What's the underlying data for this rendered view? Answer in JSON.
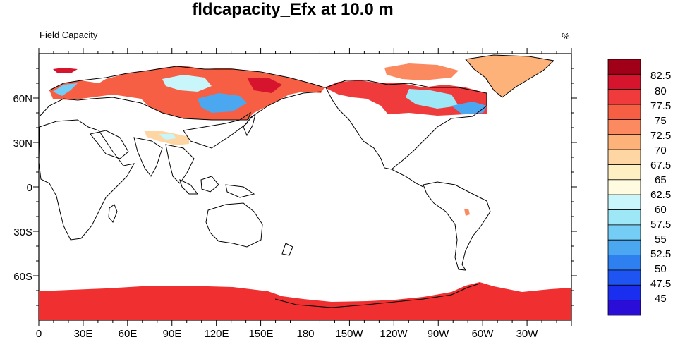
{
  "title": "fldcapacity_Efx at 10.0 m",
  "left_label": "Field Capacity",
  "right_label": "%",
  "colors": {
    "land_outline": "#000000",
    "antarctica": "#f03030"
  },
  "chart_data": {
    "type": "heatmap",
    "title": "fldcapacity_Efx at 10.0 m",
    "subtitle_left": "Field Capacity",
    "units": "%",
    "projection": "cylindrical-equidistant",
    "xlim": [
      0,
      360
    ],
    "ylim": [
      -90,
      90
    ],
    "x_ticks": [
      "0",
      "30E",
      "60E",
      "90E",
      "120E",
      "150E",
      "180",
      "150W",
      "120W",
      "90W",
      "60W",
      "30W"
    ],
    "y_ticks": [
      "60N",
      "30N",
      "0",
      "30S",
      "60S"
    ],
    "colorbar": {
      "labels": [
        "82.5",
        "80",
        "77.5",
        "75",
        "72.5",
        "70",
        "67.5",
        "65",
        "62.5",
        "60",
        "57.5",
        "55",
        "52.5",
        "50",
        "47.5",
        "45"
      ],
      "colors": [
        "#a10019",
        "#d6142d",
        "#ef3b3b",
        "#f65f43",
        "#fb8a60",
        "#fdb27a",
        "#fed6a3",
        "#fff0c3",
        "#fffbe0",
        "#c8f6fb",
        "#9ee7f7",
        "#74cdf5",
        "#4ba8f0",
        "#2e7ff0",
        "#1e55f2",
        "#1a2ef0",
        "#2a0ed8"
      ]
    },
    "regions": [
      {
        "name": "Antarctica",
        "value": 77.5
      },
      {
        "name": "Northern Eurasia",
        "value": 75
      },
      {
        "name": "Northern North America",
        "value": 77.5
      },
      {
        "name": "Greenland",
        "value": 70
      },
      {
        "name": "Central Asia patch",
        "value": 65
      }
    ]
  }
}
